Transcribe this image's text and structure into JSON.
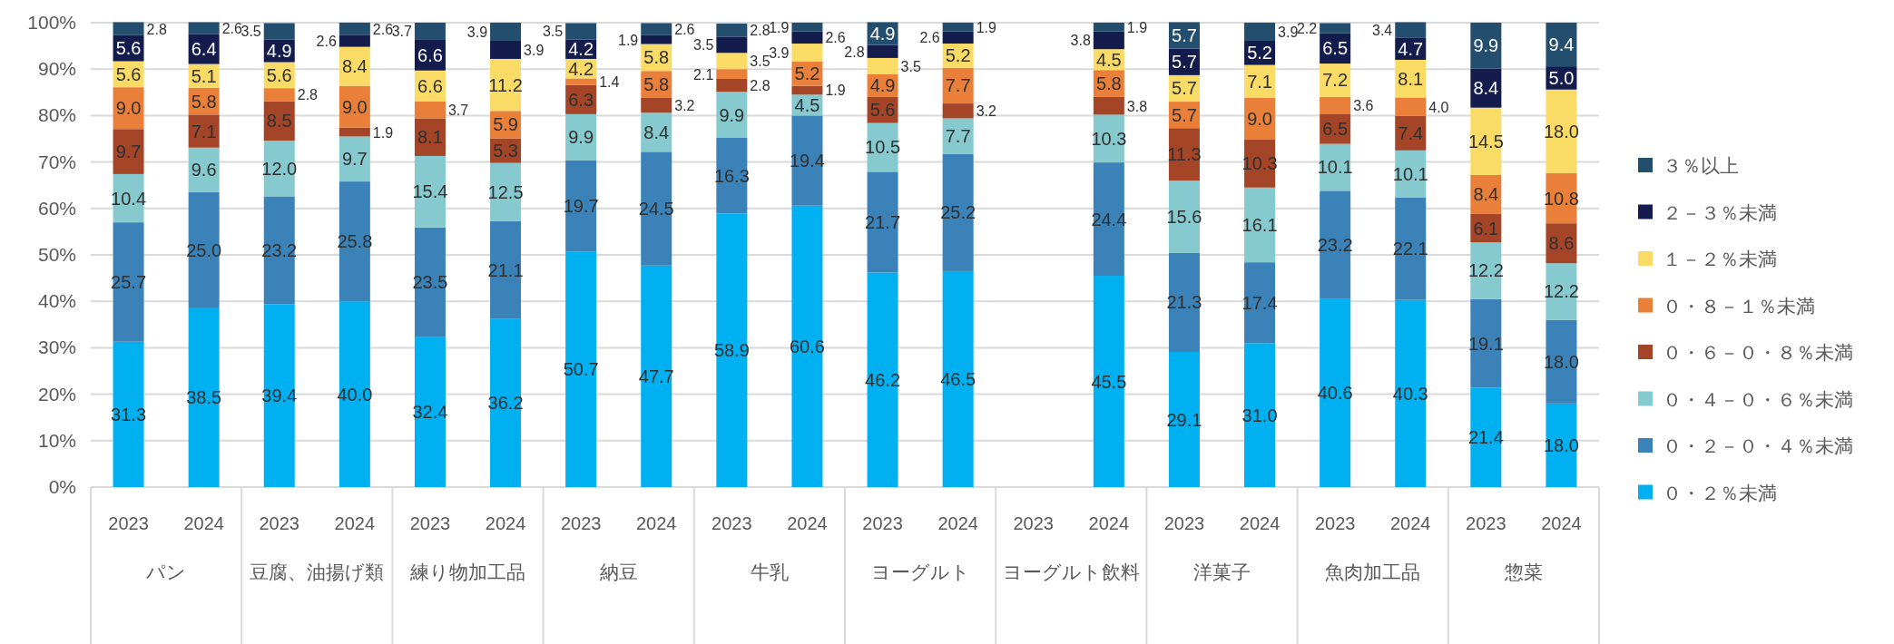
{
  "chart_data": {
    "type": "bar",
    "stacked": true,
    "grid": "y",
    "legend": "right",
    "categories": [
      "2023",
      "2024",
      "2023",
      "2024",
      "2023",
      "2024",
      "2023",
      "2024",
      "2023",
      "2024",
      "2023",
      "2024",
      "2023",
      "2024",
      "2023",
      "2024",
      "2023",
      "2024",
      "2023",
      "2024"
    ],
    "annotations": [
      "パン",
      "豆腐、油揚げ類",
      "練り物加工品",
      "納豆",
      "牛乳",
      "ヨーグルト",
      "ヨーグルト飲料",
      "洋菓子",
      "魚肉加工品",
      "惣菜"
    ],
    "ylim": [
      0,
      100
    ],
    "yticks": [
      {
        "value": 0,
        "label": "0%"
      },
      {
        "value": 10,
        "label": "10%"
      },
      {
        "value": 20,
        "label": "20%"
      },
      {
        "value": 30,
        "label": "30%"
      },
      {
        "value": 40,
        "label": "40%"
      },
      {
        "value": 50,
        "label": "50%"
      },
      {
        "value": 60,
        "label": "60%"
      },
      {
        "value": 70,
        "label": "70%"
      },
      {
        "value": 80,
        "label": "80%"
      },
      {
        "value": 90,
        "label": "90%"
      },
      {
        "value": 100,
        "label": "100%"
      }
    ],
    "series": [
      {
        "name": "０・２％未満",
        "color": "#00b0f0",
        "values": [
          31.3,
          38.5,
          39.4,
          40.0,
          32.4,
          36.2,
          50.7,
          47.7,
          58.9,
          60.6,
          46.2,
          46.5,
          null,
          45.5,
          29.1,
          31.0,
          40.6,
          40.3,
          21.4,
          18.0
        ],
        "value_labels": [
          "31.3",
          "38.5",
          "39.4",
          "40.0",
          "32.4",
          "36.2",
          "50.7",
          "47.7",
          "58.9",
          "60.6",
          "46.2",
          "46.5",
          null,
          "45.5",
          "29.1",
          "31.0",
          "40.6",
          "40.3",
          "21.4",
          "18.0"
        ]
      },
      {
        "name": "０・２－０・４％未満",
        "color": "#3a82b7",
        "values": [
          25.7,
          25.0,
          23.2,
          25.8,
          23.5,
          21.1,
          19.7,
          24.5,
          16.3,
          19.4,
          21.7,
          25.2,
          null,
          24.4,
          21.3,
          17.4,
          23.2,
          22.1,
          19.1,
          18.0
        ],
        "value_labels": [
          "25.7",
          "25.0",
          "23.2",
          "25.8",
          "23.5",
          "21.1",
          "19.7",
          "24.5",
          "16.3",
          "19.4",
          "21.7",
          "25.2",
          null,
          "24.4",
          "21.3",
          "17.4",
          "23.2",
          "22.1",
          "19.1",
          "18.0"
        ]
      },
      {
        "name": "０・４－０・６％未満",
        "color": "#86c9ce",
        "values": [
          10.4,
          9.6,
          12.0,
          9.7,
          15.4,
          12.5,
          9.9,
          8.4,
          9.9,
          4.5,
          10.5,
          7.7,
          null,
          10.3,
          15.6,
          16.1,
          10.1,
          10.1,
          12.2,
          12.2
        ],
        "value_labels": [
          "10.4",
          "9.6",
          "12.0",
          "9.7",
          "15.4",
          "12.5",
          "9.9",
          "8.4",
          "9.9",
          "4.5",
          "10.5",
          "7.7",
          null,
          "10.3",
          "15.6",
          "16.1",
          "10.1",
          "10.1",
          "12.2",
          "12.2"
        ]
      },
      {
        "name": "０・６－０・８％未満",
        "color": "#a44527",
        "values": [
          9.7,
          7.1,
          8.5,
          1.9,
          8.1,
          5.3,
          6.3,
          3.2,
          2.8,
          1.9,
          5.6,
          3.2,
          null,
          3.8,
          11.3,
          10.3,
          6.5,
          7.4,
          6.1,
          8.6
        ],
        "value_labels": [
          "9.7",
          "7.1",
          "8.5",
          "1.9",
          "8.1",
          "5.3",
          "6.3",
          "3.2",
          "2.8",
          "1.9",
          "5.6",
          "3.2",
          null,
          "3.8",
          "11.3",
          "10.3",
          "6.5",
          "7.4",
          "6.1",
          "8.6"
        ]
      },
      {
        "name": "０・８－１％未満",
        "color": "#e97f38",
        "values": [
          9.0,
          5.8,
          2.8,
          9.0,
          3.7,
          5.9,
          1.4,
          5.8,
          2.1,
          5.2,
          4.9,
          7.7,
          null,
          5.8,
          5.7,
          9.0,
          3.6,
          4.0,
          8.4,
          10.8
        ],
        "value_labels": [
          "9.0",
          "5.8",
          "2.8",
          "9.0",
          "3.7",
          "5.9",
          "1.4",
          "5.8",
          "2.1",
          "5.2",
          "4.9",
          "7.7",
          null,
          "5.8",
          "5.7",
          "9.0",
          "3.6",
          "4.0",
          "8.4",
          "10.8"
        ]
      },
      {
        "name": "１－２％未満",
        "color": "#fadb66",
        "values": [
          5.6,
          5.1,
          5.6,
          8.4,
          6.6,
          11.2,
          4.2,
          5.8,
          3.5,
          3.9,
          3.5,
          5.2,
          null,
          4.5,
          5.7,
          7.1,
          7.2,
          8.1,
          14.5,
          18.0
        ],
        "value_labels": [
          "5.6",
          "5.1",
          "5.6",
          "8.4",
          "6.6",
          "11.2",
          "4.2",
          "5.8",
          "3.5",
          "3.9",
          "3.5",
          "5.2",
          null,
          "4.5",
          "5.7",
          "7.1",
          "7.2",
          "8.1",
          "14.5",
          "18.0"
        ]
      },
      {
        "name": "２－３％未満",
        "color": "#131c4d",
        "values": [
          5.6,
          6.4,
          4.9,
          2.6,
          6.6,
          3.9,
          4.2,
          1.9,
          3.5,
          2.6,
          2.8,
          2.6,
          null,
          3.8,
          5.7,
          5.2,
          6.5,
          4.7,
          8.4,
          5.0
        ],
        "value_labels": [
          "5.6",
          "6.4",
          "4.9",
          "2.6",
          "6.6",
          "3.9",
          "4.2",
          "1.9",
          "3.5",
          "2.6",
          "2.8",
          "2.6",
          null,
          "3.8",
          "5.7",
          "5.2",
          "6.5",
          "4.7",
          "8.4",
          "5.0"
        ]
      },
      {
        "name": "３％以上",
        "color": "#234e6e",
        "values": [
          2.8,
          2.6,
          3.5,
          2.6,
          3.7,
          3.9,
          3.5,
          2.6,
          2.8,
          1.9,
          4.9,
          1.9,
          null,
          1.9,
          5.7,
          3.9,
          2.2,
          3.4,
          9.9,
          9.4
        ],
        "value_labels": [
          "2.8",
          "2.6",
          "3.5",
          "2.6",
          "3.7",
          "3.9",
          "3.5",
          "2.6",
          "2.8",
          "1.9",
          "4.9",
          "1.9",
          null,
          "1.9",
          "5.7",
          "3.9",
          "2.2",
          "3.4",
          "9.9",
          "9.4"
        ]
      }
    ]
  }
}
